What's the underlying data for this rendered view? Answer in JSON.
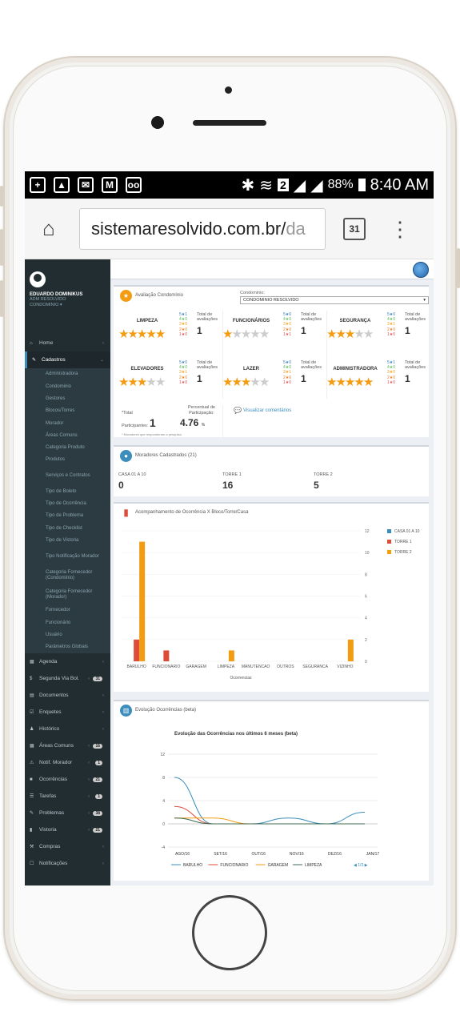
{
  "status_bar": {
    "battery": "88%",
    "time": "8:40 AM",
    "sim": "2"
  },
  "browser": {
    "url_main": "sistemaresolvido.com.br/",
    "url_fade": "da",
    "calendar_day": "31"
  },
  "user": {
    "name": "EDUARDO DOMINIKUS",
    "role1": "ADM RESOLVIDO",
    "role2": "CONDOMINIO ▾"
  },
  "sidebar": {
    "home": "Home",
    "cadastros": "Cadastros",
    "sub_items": [
      "Administradora",
      "Condominio",
      "Gestores",
      "Blocos/Torres",
      "Morador",
      "Áreas Comuns",
      "Categoria Produto",
      "Produtos",
      "Serviços e Contratos",
      "Tipo de Boleto",
      "Tipo de Ocorrência",
      "Tipo de Problema",
      "Tipo de Checklist",
      "Tipo de Vistoria",
      "Tipo Notificação Morador",
      "Categoria Fornecedor (Condominio)",
      "Categoria Fornecedor (Morador)",
      "Fornecedor",
      "Funcionário",
      "Usuário",
      "Parâmetros Globais"
    ],
    "items": [
      {
        "label": "Agenda",
        "badge": ""
      },
      {
        "label": "Segunda Via Bol.",
        "badge": "31"
      },
      {
        "label": "Documentos",
        "badge": ""
      },
      {
        "label": "Enquetes",
        "badge": ""
      },
      {
        "label": "Histórico",
        "badge": ""
      },
      {
        "label": "Áreas Comuns",
        "badge": "16"
      },
      {
        "label": "Notif. Morador",
        "badge": "1"
      },
      {
        "label": "Ocorrências",
        "badge": "21"
      },
      {
        "label": "Tarefas",
        "badge": "1"
      },
      {
        "label": "Problemas",
        "badge": "38"
      },
      {
        "label": "Vistoria",
        "badge": "21"
      },
      {
        "label": "Compras",
        "badge": ""
      },
      {
        "label": "Notificações",
        "badge": ""
      }
    ]
  },
  "evaluation": {
    "title": "Avaliação Condomínio",
    "condo_label": "Condominio:",
    "condo_value": "CONDOMINIO RESOLVIDO",
    "total_label": "Total de avaliações",
    "categories": [
      {
        "name": "LIMPEZA",
        "stars": 5,
        "dist": [
          "5★1",
          "4★0",
          "3★0",
          "2★0",
          "1★0"
        ],
        "total": "1"
      },
      {
        "name": "FUNCIONÁRIOS",
        "stars": 1,
        "dist": [
          "5★0",
          "4★0",
          "3★0",
          "2★0",
          "1★1"
        ],
        "total": "1"
      },
      {
        "name": "SEGURANÇA",
        "stars": 3,
        "dist": [
          "5★0",
          "4★0",
          "3★1",
          "2★0",
          "1★0"
        ],
        "total": "1"
      },
      {
        "name": "ELEVADORES",
        "stars": 3,
        "dist": [
          "5★0",
          "4★0",
          "3★1",
          "2★0",
          "1★0"
        ],
        "total": "1"
      },
      {
        "name": "LAZER",
        "stars": 3,
        "dist": [
          "5★0",
          "4★0",
          "3★1",
          "2★0",
          "1★0"
        ],
        "total": "1"
      },
      {
        "name": "ADMINISTRADORA",
        "stars": 5,
        "dist": [
          "5★1",
          "4★0",
          "3★0",
          "2★0",
          "1★0"
        ],
        "total": "1"
      }
    ],
    "participants_label1": "*Total",
    "participants_label2": "Participantes:",
    "participants": "1",
    "percent_label": "Percentual de Participação:",
    "percent": "4.76",
    "percent_unit": "%",
    "note": "* Moradores que responderam a pesquisa",
    "comments_link": "Visualizar comentários"
  },
  "residents": {
    "title": "Moradores Cadastrados (21)",
    "towers": [
      {
        "name": "CASA 01 A 10",
        "count": "0"
      },
      {
        "name": "TORRE 1",
        "count": "16"
      },
      {
        "name": "TORRE 2",
        "count": "5"
      }
    ]
  },
  "bar_chart": {
    "title": "Acompanhamento de Ocorrência X Bloco/Torre/Casa",
    "chart_data": {
      "type": "bar",
      "categories": [
        "BARULHO",
        "FUNCIONARIO",
        "GARAGEM",
        "LIMPEZA",
        "MANUTENCAO",
        "OUTROS",
        "SEGURANCA",
        "VIZINHO"
      ],
      "series": [
        {
          "name": "CASA 01 A 10",
          "values": [
            0,
            0,
            0,
            0,
            0,
            0,
            0,
            0
          ],
          "color": "#3c8dbc"
        },
        {
          "name": "TORRE 1",
          "values": [
            2,
            1,
            0,
            0,
            0,
            0,
            0,
            0
          ],
          "color": "#dd4b39"
        },
        {
          "name": "TORRE 2",
          "values": [
            11,
            0,
            0,
            1,
            0,
            0,
            0,
            2
          ],
          "color": "#f39c12"
        }
      ],
      "xlabel": "Ocorrencias",
      "yticks": [
        "0",
        "2",
        "4",
        "6",
        "8",
        "10",
        "12"
      ],
      "ylim": [
        0,
        12
      ],
      "legend": "right"
    }
  },
  "line_chart": {
    "title": "Evolução Ocorrências (beta)",
    "chart_data": {
      "type": "line",
      "title": "Evolução das Ocorrências nos últimos 6 meses (beta)",
      "categories": [
        "AGO/16",
        "SET/16",
        "OUT/16",
        "NOV/16",
        "DEZ/16",
        "JAN/17"
      ],
      "series": [
        {
          "name": "BARULHO",
          "values": [
            8,
            0,
            0,
            1,
            0,
            2
          ],
          "color": "#3c8dbc"
        },
        {
          "name": "FUNCIONARIO",
          "values": [
            3,
            0,
            0,
            0,
            0,
            0
          ],
          "color": "#dd4b39"
        },
        {
          "name": "GARAGEM",
          "values": [
            1,
            1,
            0,
            0,
            0,
            0
          ],
          "color": "#f39c12"
        },
        {
          "name": "LIMPEZA",
          "values": [
            1,
            0,
            0,
            0,
            0,
            0
          ],
          "color": "#3d6b4f"
        }
      ],
      "yticks": [
        "-4",
        "0",
        "4",
        "8",
        "12"
      ],
      "ylim": [
        -4,
        12
      ],
      "legend": "bottom",
      "legend_page": "1/3"
    }
  }
}
